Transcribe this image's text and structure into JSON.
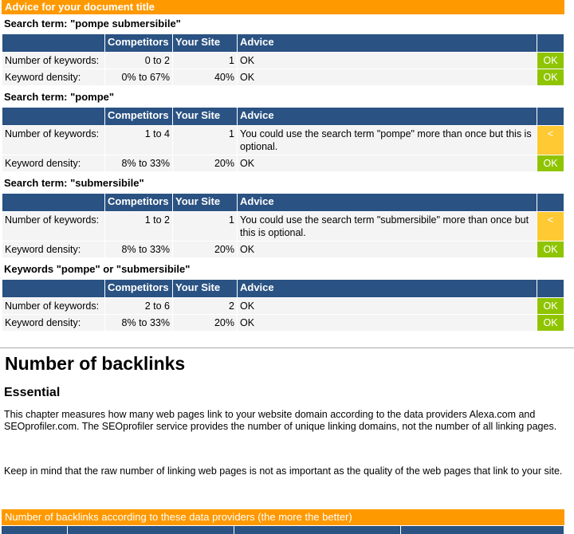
{
  "title": "Advice for your document title",
  "headers": {
    "competitors": "Competitors",
    "your_site": "Your Site",
    "advice": "Advice"
  },
  "sections": [
    {
      "term": "Search term: \"pompe submersibile\"",
      "rows": [
        {
          "label": "Number of keywords:",
          "competitors": "0 to 2",
          "site": "1",
          "advice": "OK",
          "status": "OK"
        },
        {
          "label": "Keyword density:",
          "competitors": "0% to 67%",
          "site": "40%",
          "advice": "OK",
          "status": "OK"
        }
      ]
    },
    {
      "term": "Search term: \"pompe\"",
      "rows": [
        {
          "label": "Number of keywords:",
          "competitors": "1 to 4",
          "site": "1",
          "advice": "You could use the search term \"pompe\" more than once but this is optional.",
          "status": "<"
        },
        {
          "label": "Keyword density:",
          "competitors": "8% to 33%",
          "site": "20%",
          "advice": "OK",
          "status": "OK"
        }
      ]
    },
    {
      "term": "Search term: \"submersibile\"",
      "rows": [
        {
          "label": "Number of keywords:",
          "competitors": "1 to 2",
          "site": "1",
          "advice": "You could use the search term \"submersibile\" more than once but this is optional.",
          "status": "<"
        },
        {
          "label": "Keyword density:",
          "competitors": "8% to 33%",
          "site": "20%",
          "advice": "OK",
          "status": "OK"
        }
      ]
    },
    {
      "term": "Keywords \"pompe\" or \"submersibile\"",
      "rows": [
        {
          "label": "Number of keywords:",
          "competitors": "2 to 6",
          "site": "2",
          "advice": "OK",
          "status": "OK"
        },
        {
          "label": "Keyword density:",
          "competitors": "8% to 33%",
          "site": "20%",
          "advice": "OK",
          "status": "OK"
        }
      ]
    }
  ],
  "backlinks": {
    "heading": "Number of backlinks",
    "subheading": "Essential",
    "para1": "This chapter measures how many web pages link to your website domain according to the data providers Alexa.com and SEOprofiler.com. The SEOprofiler service provides the number of unique linking domains, not the number of all linking pages.",
    "para2": "Keep in mind that the raw number of linking web pages is not as important as the quality of the web pages that link to your site.",
    "table_title": "Number of backlinks according to these data providers (the more the better)"
  },
  "colors": {
    "orange": "#ff9900",
    "navy": "#2a5282",
    "ok": "#8fc400",
    "warn": "#ffc933"
  }
}
